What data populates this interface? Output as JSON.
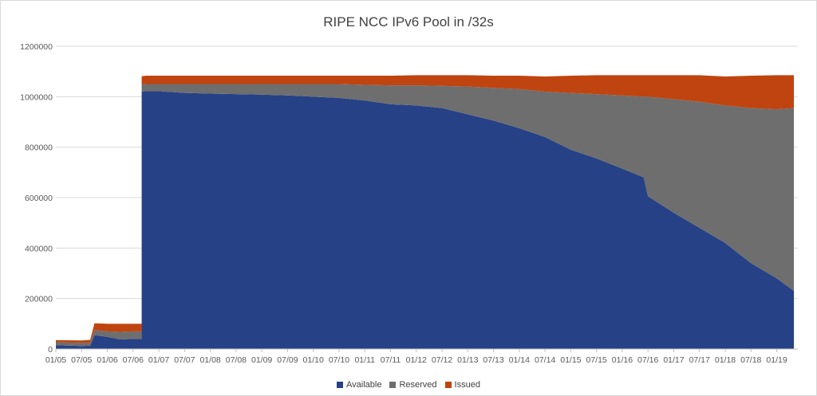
{
  "chart_data": {
    "type": "area",
    "stacked": true,
    "title": "RIPE NCC IPv6 Pool in /32s",
    "xlabel": "",
    "ylabel": "",
    "ylim": [
      0,
      1200000
    ],
    "yticks": [
      0,
      200000,
      400000,
      600000,
      800000,
      1000000,
      1200000
    ],
    "x_tick_labels": [
      "01/05",
      "07/05",
      "01/06",
      "07/06",
      "01/07",
      "07/07",
      "01/08",
      "07/08",
      "01/09",
      "07/09",
      "01/10",
      "07/10",
      "01/11",
      "07/11",
      "01/12",
      "07/12",
      "01/13",
      "07/13",
      "01/14",
      "07/14",
      "01/15",
      "07/15",
      "01/16",
      "07/16",
      "01/17",
      "07/17",
      "01/18",
      "07/18",
      "01/19"
    ],
    "grid": true,
    "legend_position": "bottom",
    "colors": {
      "Available": "#264186",
      "Reserved": "#6e6e6e",
      "Issued": "#c0440f"
    },
    "x": [
      "2005-01",
      "2005-07",
      "2005-09",
      "2005-10",
      "2006-01",
      "2006-04",
      "2006-07",
      "2006-09",
      "2006-10",
      "2007-01",
      "2007-07",
      "2008-01",
      "2008-07",
      "2009-01",
      "2009-07",
      "2010-01",
      "2010-07",
      "2011-01",
      "2011-07",
      "2012-01",
      "2012-07",
      "2013-01",
      "2013-07",
      "2014-01",
      "2014-07",
      "2015-01",
      "2015-07",
      "2016-01",
      "2016-06",
      "2016-07",
      "2017-01",
      "2017-07",
      "2018-01",
      "2018-07",
      "2019-01",
      "2019-05"
    ],
    "series": [
      {
        "name": "Available",
        "values": [
          15000,
          12000,
          13000,
          55000,
          48000,
          38000,
          40000,
          1020000,
          1022000,
          1022000,
          1015000,
          1012000,
          1010000,
          1008000,
          1005000,
          1000000,
          995000,
          985000,
          970000,
          965000,
          955000,
          930000,
          905000,
          875000,
          840000,
          790000,
          755000,
          715000,
          680000,
          605000,
          540000,
          480000,
          420000,
          340000,
          280000,
          230000
        ]
      },
      {
        "name": "Reserved",
        "values": [
          12000,
          12000,
          11000,
          20000,
          22000,
          30000,
          30000,
          28000,
          28000,
          28000,
          35000,
          38000,
          40000,
          42000,
          45000,
          50000,
          55000,
          62000,
          75000,
          80000,
          88000,
          110000,
          130000,
          155000,
          180000,
          225000,
          255000,
          290000,
          320000,
          395000,
          450000,
          500000,
          545000,
          615000,
          670000,
          725000
        ]
      },
      {
        "name": "Issued",
        "values": [
          8000,
          10000,
          12000,
          27000,
          30000,
          32000,
          30000,
          33000,
          33000,
          33000,
          33000,
          33000,
          33000,
          33000,
          33000,
          33000,
          33000,
          36000,
          38000,
          40000,
          42000,
          45000,
          48000,
          53000,
          60000,
          68000,
          75000,
          80000,
          85000,
          85000,
          95000,
          105000,
          115000,
          128000,
          135000,
          130000
        ]
      }
    ]
  }
}
